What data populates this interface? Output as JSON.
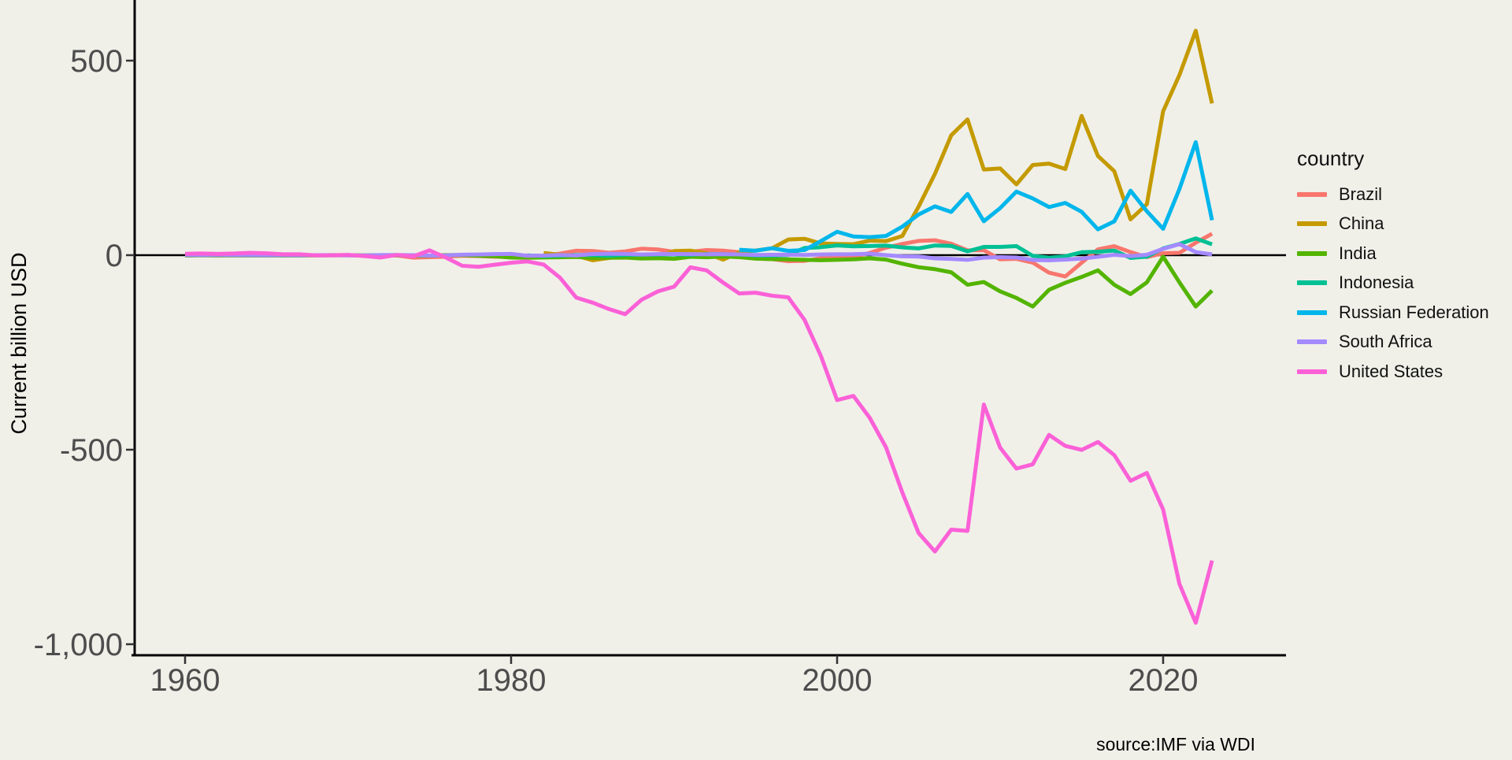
{
  "source_note": "source:IMF via WDI",
  "legend": {
    "title": "country",
    "position": "right"
  },
  "chart_data": {
    "type": "line",
    "title": "",
    "xlabel": "",
    "ylabel": "Current billion USD",
    "unit": "current billion USD",
    "grid": "off",
    "legend_position": "right",
    "background_color": "#F0F0E9",
    "axis_color": "#000000",
    "tick_label_color": "#4d4d4d",
    "x_range": [
      1956.9,
      2027.4
    ],
    "y_range": [
      -1028,
      656
    ],
    "x_ticks": [
      {
        "label": "1960",
        "year": 1960
      },
      {
        "label": "1980",
        "year": 1980
      },
      {
        "label": "2000",
        "year": 2000
      },
      {
        "label": "2020",
        "year": 2020
      }
    ],
    "y_ticks": [
      {
        "label": "500",
        "value": 500
      },
      {
        "label": "0",
        "value": 0
      },
      {
        "label": "-500",
        "value": -500
      },
      {
        "label": "-1,000",
        "value": -1000
      }
    ],
    "zero_line": true,
    "x": [
      1960,
      1961,
      1962,
      1963,
      1964,
      1965,
      1966,
      1967,
      1968,
      1969,
      1970,
      1971,
      1972,
      1973,
      1974,
      1975,
      1976,
      1977,
      1978,
      1979,
      1980,
      1981,
      1982,
      1983,
      1984,
      1985,
      1986,
      1987,
      1988,
      1989,
      1990,
      1991,
      1992,
      1993,
      1994,
      1995,
      1996,
      1997,
      1998,
      1999,
      2000,
      2001,
      2002,
      2003,
      2004,
      2005,
      2006,
      2007,
      2008,
      2009,
      2010,
      2011,
      2012,
      2013,
      2014,
      2015,
      2016,
      2017,
      2018,
      2019,
      2020,
      2021,
      2022,
      2023
    ],
    "series": [
      {
        "name": "Brazil",
        "color": "#F8766D",
        "values": [
          -0.4,
          0.0,
          -0.3,
          0.0,
          0.3,
          0.7,
          0.4,
          0.1,
          -0.2,
          0.3,
          -0.1,
          -1.0,
          -1.2,
          -0.8,
          -6.3,
          -5.0,
          -4.1,
          -1.4,
          -2.3,
          -4.0,
          -5.0,
          -0.7,
          -2.1,
          4.1,
          11.5,
          10.7,
          6.3,
          9.6,
          16.6,
          14.6,
          8.7,
          8.6,
          13.2,
          11.7,
          7.6,
          -8.1,
          -10.2,
          -15.5,
          -14.6,
          -7.8,
          -6.4,
          -5.0,
          5.8,
          19.2,
          28.9,
          36.6,
          38.2,
          29.4,
          12.5,
          12.8,
          -10.7,
          -9.4,
          -19.0,
          -45.0,
          -54.7,
          -19.3,
          14.9,
          23.0,
          8.0,
          -5.0,
          5.0,
          6.0,
          32.0,
          55.0
        ]
      },
      {
        "name": "China",
        "color": "#C49A00",
        "values": [
          null,
          null,
          null,
          null,
          null,
          null,
          null,
          null,
          null,
          null,
          null,
          null,
          null,
          null,
          null,
          null,
          null,
          null,
          null,
          null,
          null,
          null,
          5.7,
          1.3,
          -1.1,
          -13.1,
          -7.2,
          0.3,
          -5.1,
          -5.6,
          10.7,
          11.6,
          4.9,
          -11.6,
          7.3,
          12.0,
          17.6,
          40.2,
          42.1,
          30.1,
          28.9,
          28.1,
          37.4,
          36.1,
          49.3,
          124.8,
          208.9,
          308.0,
          348.9,
          220.1,
          223.0,
          181.9,
          231.8,
          235.4,
          221.5,
          357.9,
          255.0,
          216.0,
          92.0,
          131.0,
          370.0,
          463.0,
          577.0,
          390.0
        ]
      },
      {
        "name": "India",
        "color": "#53B400",
        "values": [
          -1.0,
          -0.6,
          -0.7,
          -0.7,
          -0.9,
          -0.9,
          -1.0,
          -1.0,
          -0.6,
          -0.2,
          -0.3,
          -0.5,
          -0.1,
          -0.5,
          -1.2,
          -1.6,
          0.3,
          0.2,
          -1.4,
          -2.7,
          -6.1,
          -6.5,
          -5.9,
          -5.4,
          -4.5,
          -7.2,
          -6.6,
          -6.2,
          -8.5,
          -7.9,
          -9.4,
          -4.1,
          -5.3,
          -3.4,
          -5.0,
          -8.8,
          -10.2,
          -10.9,
          -11.9,
          -13.0,
          -12.0,
          -10.7,
          -8.1,
          -11.4,
          -22.0,
          -31.0,
          -36.0,
          -44.0,
          -76.0,
          -69.0,
          -93.0,
          -110.0,
          -132.0,
          -89.0,
          -71.0,
          -56.0,
          -39.0,
          -76.0,
          -100.0,
          -70.0,
          -4.0,
          -70.0,
          -132.0,
          -91.0
        ]
      },
      {
        "name": "Indonesia",
        "color": "#00C094",
        "values": [
          null,
          null,
          null,
          null,
          null,
          null,
          null,
          null,
          null,
          null,
          null,
          null,
          null,
          null,
          null,
          null,
          null,
          null,
          null,
          null,
          null,
          -0.6,
          -2.6,
          -1.6,
          0.4,
          0.2,
          -1.2,
          0.6,
          1.2,
          1.5,
          1.7,
          1.0,
          2.9,
          2.6,
          1.8,
          -0.9,
          -1.1,
          0.2,
          18.4,
          20.6,
          25.0,
          22.7,
          23.5,
          24.6,
          20.1,
          17.5,
          24.9,
          23.7,
          9.9,
          21.2,
          21.3,
          23.3,
          -1.7,
          -6.2,
          -3.0,
          7.6,
          8.8,
          11.8,
          -7.0,
          -3.9,
          17.3,
          28.9,
          43.0,
          28.0
        ]
      },
      {
        "name": "Russian Federation",
        "color": "#00B6EB",
        "values": [
          null,
          null,
          null,
          null,
          null,
          null,
          null,
          null,
          null,
          null,
          null,
          null,
          null,
          null,
          null,
          null,
          null,
          null,
          null,
          null,
          null,
          null,
          null,
          null,
          null,
          null,
          null,
          null,
          null,
          null,
          null,
          null,
          null,
          null,
          13.9,
          11.5,
          17.8,
          11.1,
          13.1,
          36.1,
          60.2,
          48.1,
          46.3,
          49.4,
          73.4,
          104.5,
          125.5,
          111.1,
          157.2,
          87.1,
          120.9,
          163.4,
          145.8,
          123.7,
          134.3,
          111.5,
          66.5,
          86.7,
          165.8,
          112.9,
          67.7,
          170.1,
          290.5,
          89.8
        ]
      },
      {
        "name": "South Africa",
        "color": "#A58AFF",
        "values": [
          0.2,
          0.3,
          0.4,
          0.3,
          0.1,
          -0.3,
          -0.1,
          -0.2,
          0.0,
          0.0,
          -0.5,
          -0.7,
          0.2,
          0.4,
          -0.1,
          -1.0,
          -0.4,
          1.2,
          1.7,
          2.7,
          3.3,
          -1.6,
          -0.9,
          0.4,
          -0.7,
          3.0,
          3.5,
          3.2,
          1.7,
          2.8,
          3.1,
          2.8,
          2.4,
          2.5,
          1.9,
          0.6,
          0.9,
          1.2,
          0.5,
          1.7,
          2.2,
          2.5,
          3.8,
          -0.1,
          -3.1,
          -3.5,
          -8.0,
          -9.5,
          -12.0,
          -6.3,
          -5.0,
          -6.0,
          -12.3,
          -13.2,
          -11.4,
          -8.9,
          -4.2,
          0.9,
          -2.4,
          1.1,
          16.2,
          28.3,
          8.0,
          2.0
        ]
      },
      {
        "name": "United States",
        "color": "#FB61D7",
        "values": [
          3.5,
          4.2,
          3.4,
          4.2,
          6.0,
          4.7,
          2.4,
          2.3,
          -0.5,
          -0.4,
          0.8,
          -2.3,
          -6.0,
          0.6,
          -3.1,
          12.4,
          -6.1,
          -27.2,
          -29.8,
          -24.6,
          -19.4,
          -16.0,
          -24.2,
          -57.8,
          -109.1,
          -121.9,
          -138.5,
          -151.7,
          -114.6,
          -93.1,
          -80.9,
          -31.1,
          -39.2,
          -70.2,
          -98.5,
          -96.4,
          -104.1,
          -108.3,
          -166.1,
          -258.6,
          -372.5,
          -361.8,
          -418.0,
          -493.9,
          -609.9,
          -714.2,
          -761.7,
          -705.4,
          -708.7,
          -383.8,
          -494.7,
          -548.6,
          -537.6,
          -461.9,
          -490.2,
          -500.4,
          -480.2,
          -513.8,
          -579.9,
          -559.7,
          -653.9,
          -845.0,
          -944.8,
          -784.9
        ]
      }
    ]
  }
}
